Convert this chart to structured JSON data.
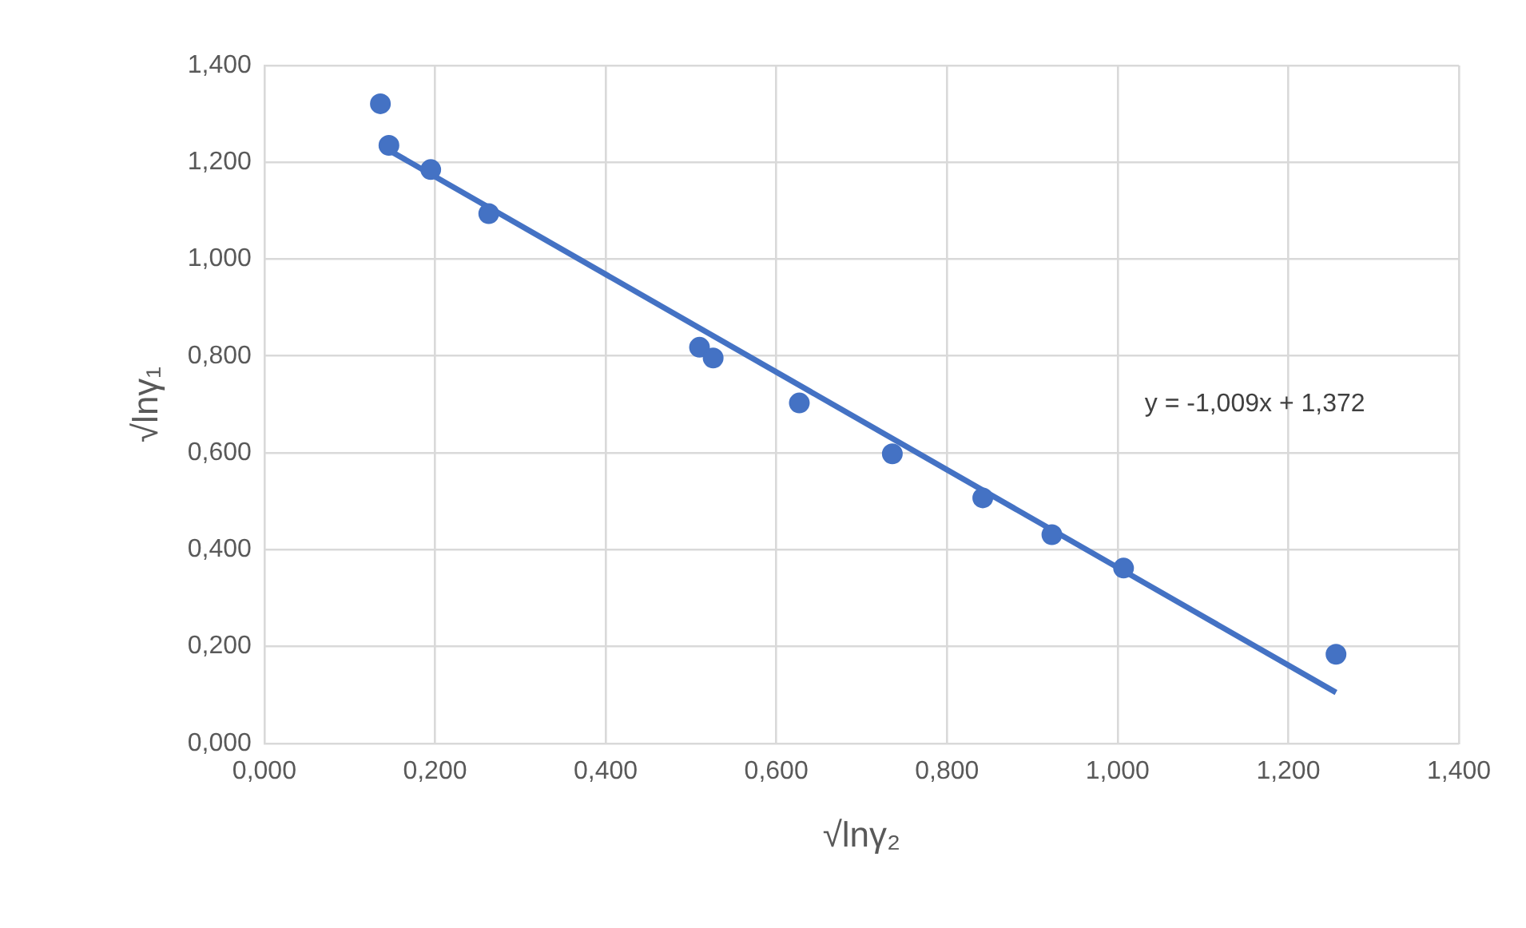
{
  "chart_data": {
    "type": "scatter",
    "xlabel": "√lnγ₂",
    "ylabel": "√lnγ₁",
    "series": [
      {
        "type": "scatter",
        "marker": "circle",
        "color": "#4472c4",
        "x": [
          0.136,
          0.146,
          0.195,
          0.263,
          0.51,
          0.526,
          0.627,
          0.736,
          0.842,
          0.923,
          1.007,
          1.256
        ],
        "values": [
          1.321,
          1.235,
          1.185,
          1.094,
          0.818,
          0.796,
          0.703,
          0.598,
          0.507,
          0.431,
          0.362,
          0.184
        ]
      },
      {
        "type": "line",
        "marker": "none",
        "color": "#4472c4",
        "x": [
          0.146,
          1.256
        ],
        "values": [
          1.225,
          0.105
        ]
      }
    ],
    "xlim": [
      0,
      1.4
    ],
    "ylim": [
      0,
      1.4
    ],
    "xticks": [
      {
        "value": 0,
        "label": "0,000"
      },
      {
        "value": 0.2,
        "label": "0,200"
      },
      {
        "value": 0.4,
        "label": "0,400"
      },
      {
        "value": 0.6,
        "label": "0,600"
      },
      {
        "value": 0.8,
        "label": "0,800"
      },
      {
        "value": 1,
        "label": "1,000"
      },
      {
        "value": 1.2,
        "label": "1,200"
      },
      {
        "value": 1.4,
        "label": "1,400"
      }
    ],
    "yticks": [
      {
        "value": 0,
        "label": "0,000"
      },
      {
        "value": 0.2,
        "label": "0,200"
      },
      {
        "value": 0.4,
        "label": "0,400"
      },
      {
        "value": 0.6,
        "label": "0,600"
      },
      {
        "value": 0.8,
        "label": "0,800"
      },
      {
        "value": 1,
        "label": "1,000"
      },
      {
        "value": 1.2,
        "label": "1,200"
      },
      {
        "value": 1.4,
        "label": "1,400"
      }
    ],
    "annotations": [
      "y = -1,009x + 1,372"
    ],
    "grid": true,
    "legend": false
  }
}
